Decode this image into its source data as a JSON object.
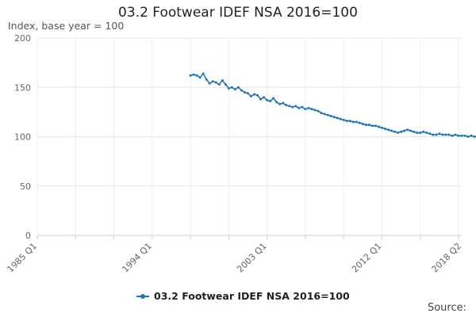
{
  "chart_data": {
    "type": "line",
    "title": "03.2 Footwear IDEF NSA 2016=100",
    "ylabel": "Index, base year = 100",
    "xlabel": "",
    "ylim": [
      0,
      200
    ],
    "yticks": [
      0,
      50,
      100,
      150,
      200
    ],
    "x_tick_labels": [
      "1985 Q1",
      "1994 Q1",
      "2003 Q1",
      "2012 Q1",
      "2018 Q2"
    ],
    "x_start": "1985 Q1",
    "x_end": "2018 Q2",
    "legend_position": "bottom",
    "grid": true,
    "source_label": "Source:",
    "series": [
      {
        "name": "03.2 Footwear IDEF NSA 2016=100",
        "color": "#1f77b4",
        "start": "1997 Q1",
        "values": [
          162,
          163,
          162,
          160,
          164,
          158,
          154,
          156,
          155,
          153,
          157,
          153,
          149,
          150,
          148,
          150,
          147,
          145,
          144,
          141,
          143,
          142,
          138,
          140,
          137,
          136,
          139,
          135,
          133,
          134,
          132,
          131,
          130,
          131,
          129,
          130,
          128,
          129,
          128,
          127,
          126,
          124,
          123,
          122,
          121,
          120,
          119,
          118,
          117,
          116,
          116,
          115,
          115,
          114,
          113,
          112,
          112,
          111,
          111,
          110,
          109,
          108,
          107,
          106,
          105,
          104,
          105,
          106,
          107,
          106,
          105,
          104,
          104,
          105,
          104,
          103,
          102,
          102,
          103,
          102,
          102,
          102,
          101,
          102,
          101,
          101,
          101,
          100,
          101,
          100,
          101,
          100,
          100,
          101,
          100,
          100,
          101,
          100,
          100,
          100,
          101,
          100,
          101,
          100,
          101,
          102,
          101,
          102,
          100,
          101,
          102,
          101,
          100,
          102,
          103,
          101,
          102,
          100,
          101,
          103,
          100,
          101,
          102,
          100,
          101,
          103,
          102,
          100,
          101,
          102,
          101,
          100,
          102,
          103,
          101,
          101,
          102,
          100,
          102,
          100,
          101,
          102,
          100,
          103,
          101,
          102,
          101,
          100,
          101,
          100,
          102,
          100,
          101,
          100,
          101,
          102,
          100,
          103
        ]
      }
    ]
  }
}
